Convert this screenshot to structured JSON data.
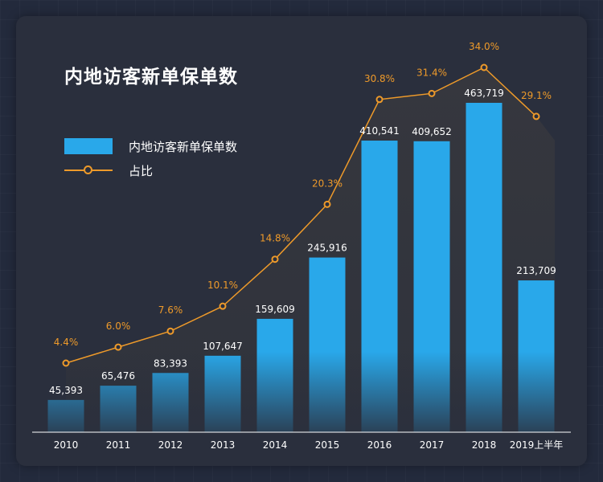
{
  "chart_data": {
    "type": "bar",
    "title": "内地访客新单保单数",
    "categories": [
      "2010",
      "2011",
      "2012",
      "2013",
      "2014",
      "2015",
      "2016",
      "2017",
      "2018",
      "2019上半年"
    ],
    "series": [
      {
        "name": "内地访客新单保单数",
        "type": "bar",
        "values": [
          45393,
          65476,
          83393,
          107647,
          159609,
          245916,
          410541,
          409652,
          463719,
          213709
        ],
        "value_labels": [
          "45,393",
          "65,476",
          "83,393",
          "107,647",
          "159,609",
          "245,916",
          "410,541",
          "409,652",
          "463,719",
          "213,709"
        ],
        "color": "#29a8ea"
      },
      {
        "name": "占比",
        "type": "line",
        "values": [
          4.4,
          6.0,
          7.6,
          10.1,
          14.8,
          20.3,
          30.8,
          31.4,
          34.0,
          29.1
        ],
        "value_labels": [
          "4.4%",
          "6.0%",
          "7.6%",
          "10.1%",
          "14.8%",
          "20.3%",
          "30.8%",
          "31.4%",
          "34.0%",
          "29.1%"
        ],
        "color": "#ee9a2a"
      }
    ],
    "legend_position": "top-left",
    "grid": false
  }
}
